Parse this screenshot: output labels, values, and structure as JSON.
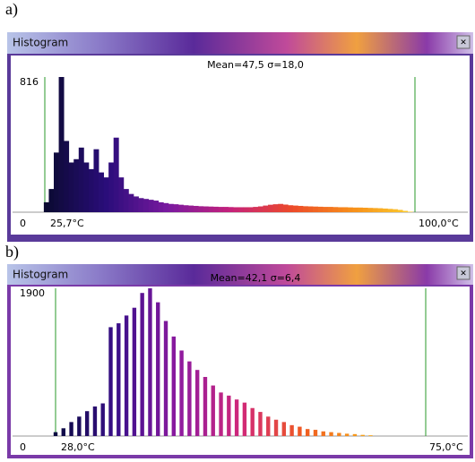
{
  "chart_data": [
    {
      "type": "histogram",
      "panel_label": "a)",
      "window_title": "Histogram",
      "title": "Mean=47,5 σ=18,0",
      "x": [
        26,
        27,
        28,
        29,
        30,
        31,
        32,
        33,
        34,
        35,
        36,
        37,
        38,
        39,
        40,
        41,
        42,
        43,
        44,
        45,
        46,
        47,
        48,
        49,
        50,
        51,
        52,
        53,
        54,
        55,
        56,
        57,
        58,
        59,
        60,
        61,
        62,
        63,
        64,
        65,
        66,
        67,
        68,
        69,
        70,
        71,
        72,
        73,
        74,
        75,
        76,
        77,
        78,
        79,
        80,
        81,
        82,
        83,
        84,
        85,
        86,
        87,
        88,
        89,
        90,
        91,
        92,
        93,
        94,
        95,
        96,
        97,
        98,
        99
      ],
      "values": [
        60,
        140,
        360,
        816,
        430,
        300,
        320,
        390,
        300,
        260,
        380,
        240,
        210,
        300,
        450,
        210,
        140,
        110,
        95,
        85,
        80,
        75,
        70,
        60,
        55,
        50,
        48,
        45,
        42,
        40,
        38,
        36,
        35,
        34,
        33,
        32,
        32,
        31,
        30,
        30,
        30,
        30,
        32,
        35,
        40,
        45,
        48,
        50,
        46,
        42,
        40,
        38,
        36,
        35,
        34,
        33,
        32,
        32,
        31,
        30,
        30,
        29,
        28,
        28,
        27,
        26,
        25,
        24,
        22,
        20,
        18,
        14,
        8,
        3
      ],
      "xlim": [
        25.7,
        100
      ],
      "xticks": [
        {
          "value": 25.7,
          "label": "25,7°C"
        },
        {
          "value": 100,
          "label": "100,0°C"
        }
      ],
      "ylim": [
        0,
        816
      ],
      "yticks": [
        0,
        816
      ],
      "palette": [
        "#0a0a30",
        "#2a0d7a",
        "#7a1aa0",
        "#c4227c",
        "#ec4a2a",
        "#f7901a",
        "#fbd030"
      ]
    },
    {
      "type": "histogram",
      "panel_label": "b)",
      "window_title": "Histogram",
      "title": "Mean=42,1 σ=6,4",
      "x": [
        28,
        29,
        30,
        31,
        32,
        33,
        34,
        35,
        36,
        37,
        38,
        39,
        40,
        41,
        42,
        43,
        44,
        45,
        46,
        47,
        48,
        49,
        50,
        51,
        52,
        53,
        54,
        55,
        56,
        57,
        58,
        59,
        60,
        61,
        62,
        63,
        64,
        65,
        66,
        67,
        68
      ],
      "values": [
        50,
        100,
        180,
        250,
        320,
        380,
        420,
        1400,
        1450,
        1550,
        1650,
        1840,
        1900,
        1720,
        1480,
        1280,
        1100,
        960,
        850,
        760,
        650,
        560,
        520,
        470,
        430,
        360,
        310,
        250,
        210,
        180,
        140,
        120,
        90,
        80,
        60,
        50,
        40,
        30,
        25,
        15,
        10
      ],
      "xlim": [
        28,
        75
      ],
      "xticks": [
        {
          "value": 28,
          "label": "28,0°C"
        },
        {
          "value": 75,
          "label": "75,0°C"
        }
      ],
      "ylim": [
        0,
        1900
      ],
      "yticks": [
        0,
        1900
      ],
      "palette": [
        "#0a0a40",
        "#3a0f8a",
        "#8e1aa0",
        "#d0287a",
        "#ef5a22",
        "#f7a018",
        "#fbe040"
      ]
    }
  ]
}
